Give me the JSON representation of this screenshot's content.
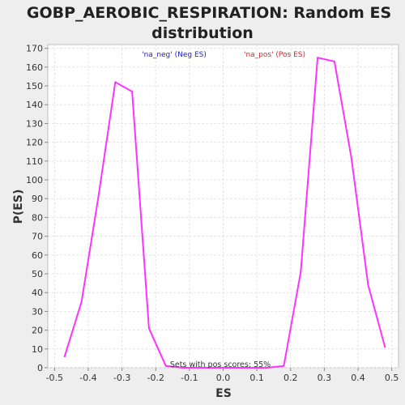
{
  "chart_data": {
    "type": "line",
    "title_lines": [
      "GOBP_AEROBIC_RESPIRATION: Random ES",
      "distribution"
    ],
    "xlabel": "ES",
    "ylabel": "P(ES)",
    "xlim": [
      -0.52,
      0.52
    ],
    "ylim": [
      0,
      172
    ],
    "x_ticks": [
      "-0.5",
      "-0.4",
      "-0.3",
      "-0.2",
      "-0.1",
      "0.0",
      "0.1",
      "0.2",
      "0.3",
      "0.4",
      "0.5"
    ],
    "y_ticks": [
      "0",
      "10",
      "20",
      "30",
      "40",
      "50",
      "60",
      "70",
      "80",
      "90",
      "100",
      "110",
      "120",
      "130",
      "140",
      "150",
      "160",
      "170"
    ],
    "grid": true,
    "line_color": "#ff33ff",
    "legend": [
      {
        "label": "'na_neg' (Neg ES)",
        "color": "#2222cc"
      },
      {
        "label": "'na_pos' (Pos ES)",
        "color": "#dd2222"
      }
    ],
    "annotation": "Sets with pos scores: 55%",
    "series": [
      {
        "x": [
          -0.47,
          -0.42,
          -0.37,
          -0.32,
          -0.27,
          -0.22,
          -0.17,
          -0.12,
          -0.07,
          -0.02,
          0.03,
          0.08,
          0.13,
          0.18,
          0.23,
          0.28,
          0.33,
          0.38,
          0.43,
          0.48
        ],
        "y": [
          6,
          35,
          91,
          152,
          147,
          21,
          1,
          0,
          0,
          0,
          0,
          0,
          0,
          1,
          51,
          165,
          163,
          112,
          44,
          11
        ]
      }
    ]
  }
}
